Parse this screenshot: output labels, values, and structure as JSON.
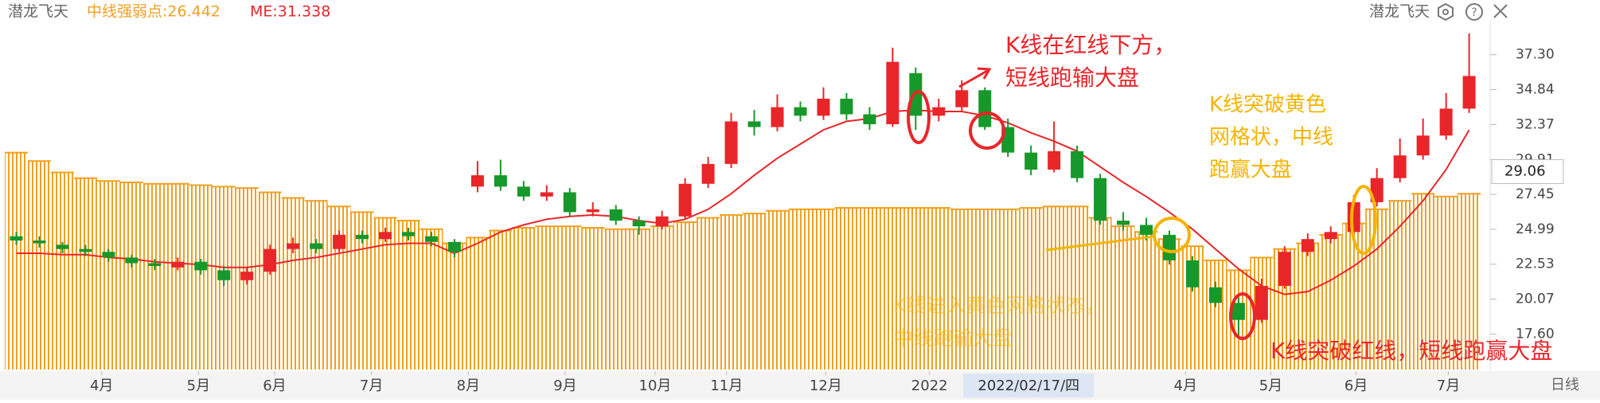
{
  "header": {
    "name": "潜龙飞天",
    "mid": "中线强弱点:26.442",
    "me": "ME:31.338",
    "right_name": "潜龙飞天",
    "period": "日线"
  },
  "chart_data": {
    "type": "candlestick",
    "up_color": "#e8262a",
    "down_color": "#17982a",
    "open": [
      24.5,
      24.2,
      23.9,
      23.6,
      23.4,
      23.0,
      22.6,
      22.3,
      22.7,
      22.1,
      21.4,
      22.0,
      23.6,
      24.0,
      23.6,
      24.6,
      24.3,
      24.8,
      24.5,
      24.1,
      28.0,
      28.8,
      28.0,
      27.3,
      27.6,
      26.2,
      26.4,
      25.6,
      25.2,
      25.9,
      28.2,
      29.6,
      32.6,
      32.2,
      33.6,
      33.0,
      34.2,
      33.1,
      32.4,
      36.0,
      33.0,
      33.6,
      34.8,
      32.2,
      30.4,
      29.2,
      30.5,
      28.6,
      25.6,
      25.3,
      24.6,
      22.8,
      20.9,
      19.8,
      18.6,
      21.0,
      23.4,
      24.3,
      24.8,
      26.9,
      28.6,
      30.2,
      31.6,
      33.5
    ],
    "high": [
      24.8,
      24.5,
      24.1,
      23.9,
      23.6,
      23.2,
      22.9,
      23.0,
      22.9,
      22.4,
      22.3,
      23.9,
      24.4,
      24.3,
      24.9,
      24.9,
      25.1,
      25.1,
      24.8,
      24.3,
      29.8,
      29.9,
      28.4,
      28.1,
      27.9,
      26.9,
      26.7,
      25.9,
      26.3,
      28.6,
      30.1,
      33.2,
      33.4,
      34.5,
      34.0,
      35.0,
      34.6,
      33.6,
      37.8,
      36.4,
      34.2,
      35.5,
      35.0,
      32.8,
      30.9,
      32.6,
      30.9,
      28.9,
      26.2,
      25.8,
      24.9,
      23.1,
      21.3,
      20.2,
      21.5,
      23.8,
      24.7,
      25.2,
      27.4,
      29.3,
      31.4,
      32.8,
      34.6,
      38.8
    ],
    "low": [
      23.9,
      23.7,
      23.3,
      23.1,
      22.7,
      22.3,
      22.1,
      22.1,
      21.8,
      21.0,
      21.1,
      21.8,
      23.3,
      23.3,
      23.4,
      24.0,
      24.1,
      24.2,
      23.8,
      23.0,
      27.6,
      27.7,
      27.0,
      27.0,
      25.9,
      25.9,
      25.3,
      24.6,
      25.0,
      25.7,
      27.9,
      29.3,
      31.6,
      31.9,
      32.6,
      32.7,
      32.7,
      32.0,
      32.2,
      32.0,
      32.6,
      33.3,
      32.0,
      30.1,
      28.8,
      29.0,
      28.3,
      25.3,
      24.9,
      24.2,
      22.5,
      20.6,
      19.5,
      17.4,
      18.4,
      20.8,
      23.1,
      24.0,
      24.5,
      26.6,
      28.3,
      29.9,
      31.3,
      33.2
    ],
    "close": [
      24.2,
      24.0,
      23.6,
      23.4,
      23.0,
      22.6,
      22.4,
      22.7,
      22.1,
      21.4,
      22.0,
      23.6,
      24.0,
      23.6,
      24.6,
      24.3,
      24.8,
      24.5,
      24.1,
      23.4,
      28.8,
      28.0,
      27.3,
      27.6,
      26.2,
      26.4,
      25.6,
      25.2,
      25.9,
      28.2,
      29.6,
      32.6,
      32.2,
      33.6,
      33.0,
      34.2,
      33.1,
      32.4,
      36.8,
      33.0,
      33.6,
      34.8,
      32.2,
      30.4,
      29.2,
      30.5,
      28.6,
      25.6,
      25.3,
      24.6,
      22.8,
      20.9,
      19.8,
      18.6,
      21.0,
      23.4,
      24.3,
      24.8,
      26.9,
      28.6,
      30.2,
      31.6,
      33.5,
      35.8
    ],
    "band": {
      "color": "#f0a020",
      "values": [
        30.4,
        29.8,
        29.0,
        28.6,
        28.4,
        28.3,
        28.2,
        28.2,
        28.1,
        28.0,
        27.9,
        27.6,
        27.2,
        27.0,
        26.6,
        26.2,
        25.8,
        25.6,
        25.0,
        24.0,
        24.4,
        24.9,
        25.1,
        25.2,
        25.2,
        25.1,
        25.0,
        25.0,
        25.2,
        25.5,
        25.8,
        26.0,
        26.1,
        26.3,
        26.4,
        26.4,
        26.5,
        26.5,
        26.5,
        26.5,
        26.5,
        26.4,
        26.4,
        26.4,
        26.5,
        26.6,
        26.6,
        25.8,
        25.2,
        24.8,
        24.3,
        23.8,
        22.8,
        22.1,
        23.0,
        23.6,
        24.0,
        24.6,
        25.4,
        26.4,
        27.0,
        27.5,
        27.3,
        27.5
      ]
    },
    "ma": {
      "color": "#e8262a",
      "values": [
        23.3,
        23.3,
        23.2,
        23.2,
        23.0,
        22.9,
        22.7,
        22.6,
        22.5,
        22.3,
        22.3,
        22.5,
        22.8,
        23.0,
        23.3,
        23.6,
        23.9,
        24.0,
        24.0,
        23.3,
        24.0,
        24.8,
        25.3,
        25.7,
        25.9,
        26.0,
        25.9,
        25.6,
        25.4,
        25.7,
        26.4,
        27.5,
        28.8,
        30.0,
        31.0,
        32.0,
        32.6,
        32.8,
        33.3,
        33.4,
        33.3,
        33.3,
        33.0,
        32.5,
        31.8,
        31.2,
        30.5,
        29.4,
        28.3,
        27.3,
        26.2,
        25.0,
        23.6,
        22.2,
        21.0,
        20.4,
        20.6,
        21.4,
        22.4,
        23.6,
        25.2,
        27.0,
        29.2,
        32.0
      ]
    },
    "ylim": [
      15.1,
      39.7
    ],
    "yticks": [
      {
        "value": 37.3,
        "label": "37.30"
      },
      34.84,
      32.37,
      29.91,
      27.45,
      24.99,
      22.53,
      20.07,
      {
        "value": 17.6,
        "label": "17.60"
      }
    ],
    "xticks": [
      {
        "value": 3.7,
        "label": "4月"
      },
      {
        "value": 7.9,
        "label": "5月"
      },
      {
        "value": 11.2,
        "label": "6月"
      },
      {
        "value": 15.4,
        "label": "7月"
      },
      {
        "value": 19.6,
        "label": "8月"
      },
      {
        "value": 23.8,
        "label": "9月"
      },
      {
        "value": 27.7,
        "label": "10月"
      },
      {
        "value": 30.8,
        "label": "11月"
      },
      {
        "value": 35.1,
        "label": "12月"
      },
      {
        "value": 39.6,
        "label": "2022"
      },
      {
        "value": 50.7,
        "label": "4月"
      },
      {
        "value": 54.4,
        "label": "5月"
      },
      {
        "value": 58.1,
        "label": "6月"
      },
      {
        "value": 62.1,
        "label": "7月"
      }
    ],
    "cursor": {
      "value": 43.9,
      "label": "2022/02/17/四"
    },
    "last_price": 29.06,
    "annotations": [
      "K线在红线下方，",
      "短线跑输大盘",
      "K线突破黄色",
      "网格状，中线",
      "跑赢大盘",
      "K线进入黄色网格状态，",
      "中线跑输大盘",
      "K线突破红线，短线跑赢大盘"
    ]
  }
}
